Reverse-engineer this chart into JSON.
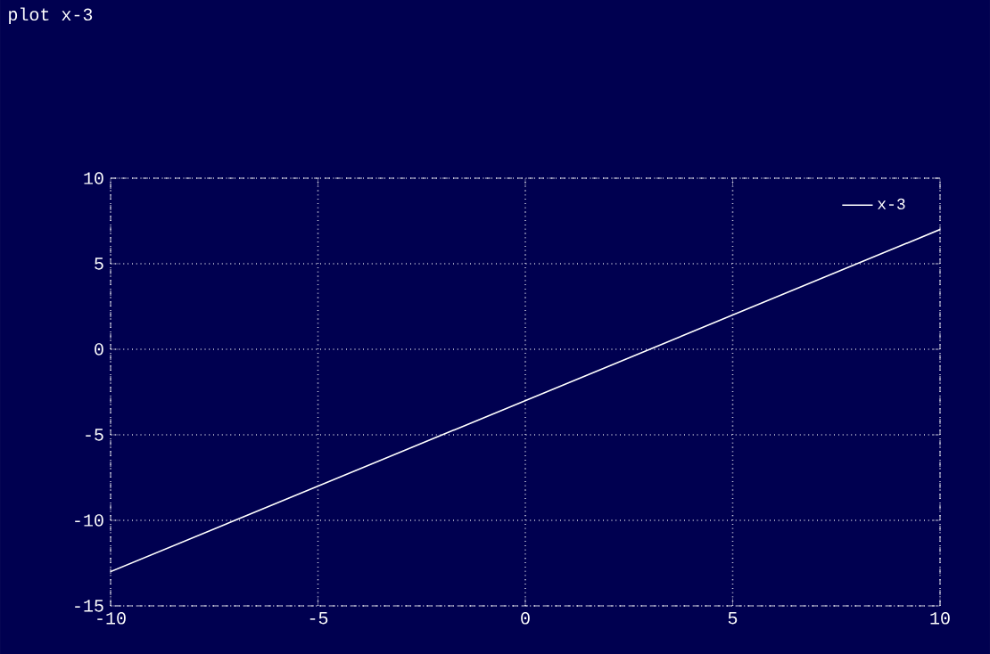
{
  "chart_data": {
    "type": "line",
    "title": "plot x-3",
    "x": [
      -10,
      -5,
      0,
      5,
      10
    ],
    "series": [
      {
        "name": "x-3",
        "color": "#ffffff",
        "values": [
          -13,
          -8,
          -3,
          2,
          7
        ]
      }
    ],
    "xlim": [
      -10,
      10
    ],
    "ylim": [
      -15,
      10
    ],
    "xticks": [
      -10,
      -5,
      0,
      5,
      10
    ],
    "yticks": [
      -15,
      -10,
      -5,
      0,
      5,
      10
    ],
    "grid": true,
    "legend": "top right",
    "marker": "none",
    "line_style": "solid"
  }
}
